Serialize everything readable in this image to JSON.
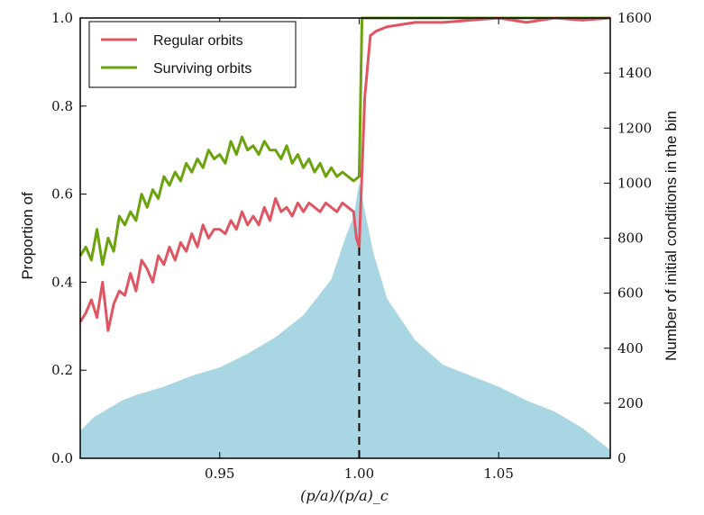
{
  "chart_data": {
    "type": "line",
    "title": "",
    "xlabel": "(p/a)/(p/a)_c",
    "ylabel_left": "Proportion of",
    "ylabel_right": "Number of initial conditions in the bin",
    "xlim": [
      0.9,
      1.09
    ],
    "ylim_left": [
      0.0,
      1.0
    ],
    "ylim_right": [
      0,
      1600
    ],
    "x_ticks": [
      0.95,
      1.0,
      1.05
    ],
    "x_tick_labels": [
      "0.95",
      "1.00",
      "1.05"
    ],
    "y_left_ticks": [
      0.0,
      0.2,
      0.4,
      0.6,
      0.8,
      1.0
    ],
    "y_left_tick_labels": [
      "0.0",
      "0.2",
      "0.4",
      "0.6",
      "0.8",
      "1.0"
    ],
    "y_right_ticks": [
      0,
      200,
      400,
      600,
      800,
      1000,
      1200,
      1400,
      1600
    ],
    "y_right_tick_labels": [
      "0",
      "200",
      "400",
      "600",
      "800",
      "1000",
      "1200",
      "1400",
      "1600"
    ],
    "vline_x": 1.0,
    "legend": {
      "position": "top-left",
      "entries": [
        "Regular orbits",
        "Surviving orbits"
      ]
    },
    "colors": {
      "regular": "#e05562",
      "surviving": "#6aa30d",
      "histogram": "#a9d6e3",
      "vline": "#000000"
    },
    "histogram": {
      "name": "Number of initial conditions in the bin",
      "axis": "right",
      "x": [
        0.9,
        0.905,
        0.91,
        0.915,
        0.92,
        0.93,
        0.94,
        0.95,
        0.96,
        0.97,
        0.98,
        0.99,
        0.995,
        0.998,
        1.0,
        1.002,
        1.005,
        1.01,
        1.02,
        1.03,
        1.04,
        1.05,
        1.06,
        1.07,
        1.08,
        1.085,
        1.09
      ],
      "values": [
        100,
        150,
        180,
        210,
        230,
        260,
        300,
        330,
        380,
        440,
        520,
        650,
        800,
        880,
        1000,
        900,
        750,
        580,
        430,
        340,
        300,
        260,
        210,
        170,
        110,
        70,
        30
      ]
    },
    "series": [
      {
        "name": "Regular orbits",
        "axis": "left",
        "x": [
          0.9,
          0.902,
          0.904,
          0.906,
          0.908,
          0.91,
          0.912,
          0.914,
          0.916,
          0.918,
          0.92,
          0.922,
          0.924,
          0.926,
          0.928,
          0.93,
          0.932,
          0.934,
          0.936,
          0.938,
          0.94,
          0.942,
          0.944,
          0.946,
          0.948,
          0.95,
          0.952,
          0.954,
          0.956,
          0.958,
          0.96,
          0.962,
          0.964,
          0.966,
          0.968,
          0.97,
          0.972,
          0.974,
          0.976,
          0.978,
          0.98,
          0.982,
          0.984,
          0.986,
          0.988,
          0.99,
          0.992,
          0.994,
          0.996,
          0.998,
          0.999,
          1.0,
          1.002,
          1.004,
          1.006,
          1.01,
          1.02,
          1.03,
          1.04,
          1.05,
          1.06,
          1.07,
          1.08,
          1.09
        ],
        "values": [
          0.31,
          0.33,
          0.36,
          0.32,
          0.4,
          0.29,
          0.35,
          0.38,
          0.37,
          0.42,
          0.38,
          0.45,
          0.43,
          0.4,
          0.46,
          0.44,
          0.48,
          0.45,
          0.49,
          0.47,
          0.51,
          0.48,
          0.53,
          0.5,
          0.52,
          0.52,
          0.51,
          0.54,
          0.52,
          0.56,
          0.53,
          0.55,
          0.53,
          0.57,
          0.54,
          0.59,
          0.56,
          0.57,
          0.55,
          0.58,
          0.56,
          0.58,
          0.57,
          0.56,
          0.58,
          0.57,
          0.56,
          0.58,
          0.57,
          0.56,
          0.5,
          0.48,
          0.82,
          0.96,
          0.97,
          0.98,
          0.99,
          0.99,
          0.995,
          1.0,
          0.99,
          1.0,
          0.995,
          1.0
        ]
      },
      {
        "name": "Surviving orbits",
        "axis": "left",
        "x": [
          0.9,
          0.902,
          0.904,
          0.906,
          0.908,
          0.91,
          0.912,
          0.914,
          0.916,
          0.918,
          0.92,
          0.922,
          0.924,
          0.926,
          0.928,
          0.93,
          0.932,
          0.934,
          0.936,
          0.938,
          0.94,
          0.942,
          0.944,
          0.946,
          0.948,
          0.95,
          0.952,
          0.954,
          0.956,
          0.958,
          0.96,
          0.962,
          0.964,
          0.966,
          0.968,
          0.97,
          0.972,
          0.974,
          0.976,
          0.978,
          0.98,
          0.982,
          0.984,
          0.986,
          0.988,
          0.99,
          0.992,
          0.994,
          0.996,
          0.998,
          1.0,
          1.001,
          1.09
        ],
        "values": [
          0.46,
          0.48,
          0.45,
          0.52,
          0.44,
          0.5,
          0.47,
          0.55,
          0.53,
          0.56,
          0.54,
          0.6,
          0.57,
          0.61,
          0.59,
          0.64,
          0.62,
          0.65,
          0.63,
          0.67,
          0.65,
          0.68,
          0.66,
          0.7,
          0.68,
          0.69,
          0.67,
          0.72,
          0.69,
          0.73,
          0.7,
          0.71,
          0.69,
          0.72,
          0.7,
          0.7,
          0.68,
          0.71,
          0.67,
          0.69,
          0.66,
          0.68,
          0.65,
          0.67,
          0.64,
          0.66,
          0.64,
          0.65,
          0.64,
          0.63,
          0.64,
          1.0,
          1.0
        ]
      }
    ]
  }
}
